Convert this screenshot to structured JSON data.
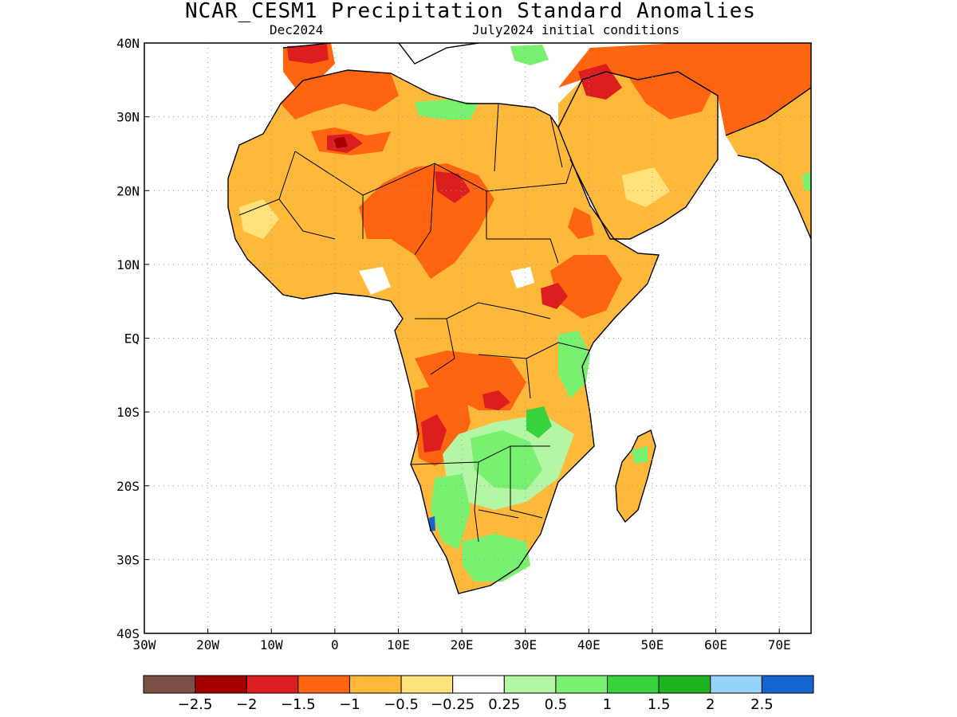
{
  "title": "NCAR_CESM1 Precipitation Standard Anomalies",
  "subtitle_left": "Dec2024",
  "subtitle_right": "July2024 initial conditions",
  "axes": {
    "lon_min": -30,
    "lon_max": 75,
    "lat_min": -40,
    "lat_max": 40,
    "x_ticks": [
      {
        "lon": -30,
        "label": "30W"
      },
      {
        "lon": -20,
        "label": "20W"
      },
      {
        "lon": -10,
        "label": "10W"
      },
      {
        "lon": 0,
        "label": "0"
      },
      {
        "lon": 10,
        "label": "10E"
      },
      {
        "lon": 20,
        "label": "20E"
      },
      {
        "lon": 30,
        "label": "30E"
      },
      {
        "lon": 40,
        "label": "40E"
      },
      {
        "lon": 50,
        "label": "50E"
      },
      {
        "lon": 60,
        "label": "60E"
      },
      {
        "lon": 70,
        "label": "70E"
      }
    ],
    "y_ticks": [
      {
        "lat": 40,
        "label": "40N"
      },
      {
        "lat": 30,
        "label": "30N"
      },
      {
        "lat": 20,
        "label": "20N"
      },
      {
        "lat": 10,
        "label": "10N"
      },
      {
        "lat": 0,
        "label": "EQ"
      },
      {
        "lat": -10,
        "label": "10S"
      },
      {
        "lat": -20,
        "label": "20S"
      },
      {
        "lat": -30,
        "label": "30S"
      },
      {
        "lat": -40,
        "label": "40S"
      }
    ],
    "grid": "dotted"
  },
  "colorbar": {
    "colors": [
      "#7a4f45",
      "#a50000",
      "#dc1e1e",
      "#ff6410",
      "#ffb93a",
      "#ffe37a",
      "#ffffff",
      "#b4f6a4",
      "#78f070",
      "#37d23c",
      "#1eb41e",
      "#96d2fa",
      "#1464d2"
    ],
    "labels": [
      "-2.5",
      "-2",
      "-1.5",
      "-1",
      "-0.5",
      "-0.25",
      "0.25",
      "0.5",
      "1",
      "1.5",
      "2",
      "2.5"
    ]
  },
  "legend_palette": {
    "dry_extreme": "#a50000",
    "dry_strong": "#dc1e1e",
    "dry_moderate": "#ff6410",
    "dry_weak": "#ffb93a",
    "dry_slight": "#ffe37a",
    "near_normal": "#ffffff",
    "wet_slight": "#b4f6a4",
    "wet_weak": "#78f070",
    "wet_moderate": "#37d23c",
    "wet_very": "#96d2fa",
    "wet_extreme": "#1464d2"
  }
}
